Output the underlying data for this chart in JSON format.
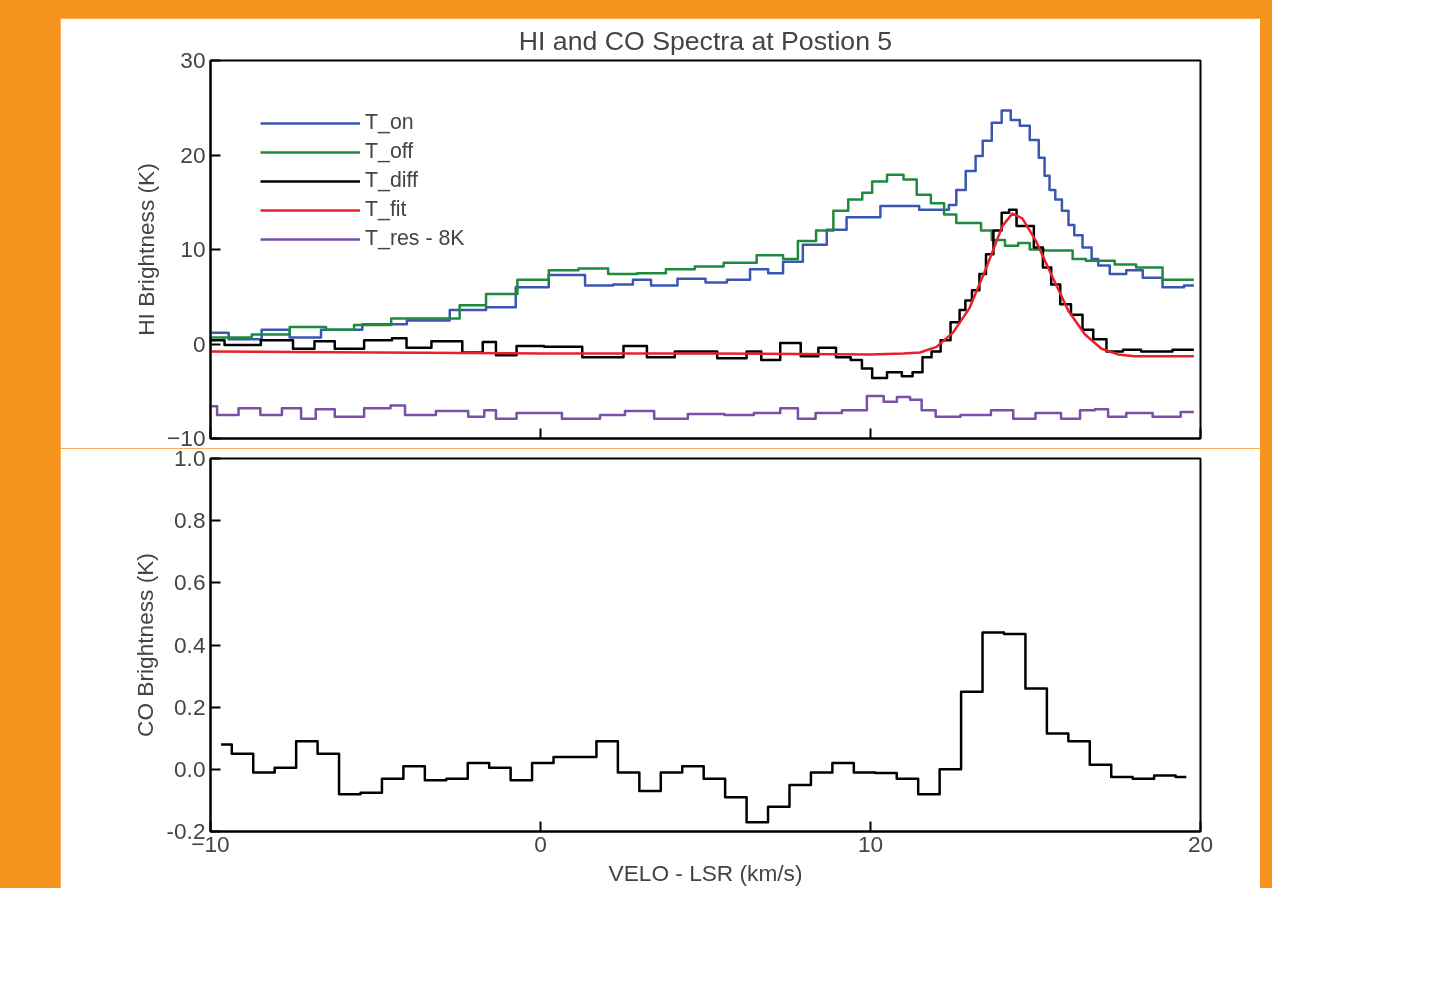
{
  "chart_data": [
    {
      "type": "step",
      "title": "HI and CO Spectra at Postion 5",
      "ylabel": "HI Brightness (K)",
      "xlim": [
        -10,
        20
      ],
      "ylim": [
        -10,
        30
      ],
      "yticks": [
        -10,
        0,
        10,
        20,
        30
      ],
      "tick_labels": "y",
      "legend": "top left",
      "series": [
        {
          "name": "T_on",
          "color": "#3a56b0",
          "x": [
            -10,
            -8.9,
            -8.0,
            -7.2,
            -6.1,
            -4.7,
            -3.4,
            -2.1,
            -1.2,
            -0.3,
            0.8,
            1.9,
            2.5,
            3.1,
            3.6,
            4.7,
            5.3,
            6.0,
            6.7,
            7.1,
            7.6,
            8.3,
            9.05,
            9.5,
            9.9,
            10.7,
            12.25,
            12.5,
            12.7,
            13.07,
            13.3,
            13.5,
            13.85,
            14.1,
            14.4,
            14.65,
            15.0,
            15.2,
            15.35,
            15.5,
            15.7,
            15.9,
            16.1,
            16.25,
            16.6,
            16.8,
            17.0,
            17.5,
            18.0,
            18.5,
            19.2,
            19.8
          ],
          "values": [
            1.2,
            0.5,
            1.5,
            0.7,
            1.5,
            2.1,
            2.5,
            3.6,
            3.9,
            6.0,
            7.3,
            6.2,
            6.3,
            6.8,
            6.2,
            6.9,
            6.5,
            6.8,
            7.9,
            7.5,
            8.7,
            10.5,
            12.1,
            13.4,
            13.4,
            14.6,
            14.2,
            14.7,
            16.3,
            18.3,
            19.9,
            21.5,
            23.4,
            24.7,
            23.7,
            23.1,
            21.6,
            19.7,
            17.8,
            16.3,
            15.3,
            14.1,
            12.6,
            11.5,
            10.2,
            9.0,
            8.3,
            7.4,
            7.8,
            7.0,
            6.0,
            6.2
          ]
        },
        {
          "name": "T_off",
          "color": "#1e8a3c",
          "x": [
            -10,
            -9.2,
            -8.3,
            -6.9,
            -6.1,
            -5.2,
            -3.85,
            -2.8,
            -2.1,
            -1.2,
            -0.2,
            0.7,
            1.6,
            2.5,
            3.35,
            4.25,
            5.1,
            6.0,
            7.1,
            7.6,
            8.0,
            8.7,
            9.05,
            9.6,
            9.9,
            10.2,
            10.8,
            11.2,
            11.6,
            12.06,
            12.4,
            12.8,
            13.2,
            13.5,
            13.85,
            14.3,
            14.65,
            15.0,
            15.5,
            16.0,
            16.25,
            16.8,
            17.1,
            17.7,
            18.4,
            19.3,
            19.8
          ],
          "values": [
            0.7,
            0.7,
            1.0,
            1.8,
            1.5,
            2.0,
            2.7,
            2.7,
            4.1,
            5.3,
            6.8,
            7.8,
            8.0,
            7.4,
            7.5,
            7.9,
            8.2,
            8.6,
            9.4,
            9.0,
            10.9,
            12.0,
            14.1,
            15.3,
            16.0,
            17.2,
            17.9,
            17.4,
            15.8,
            14.9,
            13.7,
            12.8,
            12.8,
            12.0,
            11.0,
            10.4,
            10.7,
            10.0,
            9.9,
            9.9,
            9.0,
            8.8,
            8.8,
            8.4,
            8.1,
            6.8,
            6.8
          ]
        },
        {
          "name": "T_diff",
          "color": "#000000",
          "x": [
            -10,
            -9.15,
            -7.8,
            -7.2,
            -6.5,
            -5.97,
            -4.72,
            -4.28,
            -3.84,
            -2.77,
            -1.97,
            -1.53,
            -1.17,
            -0.28,
            0.5,
            2.03,
            3.0,
            3.45,
            4.69,
            6.02,
            6.47,
            6.91,
            7.62,
            8.15,
            8.69,
            9.22,
            9.58,
            9.9,
            10.2,
            10.8,
            11.1,
            11.45,
            11.7,
            12.0,
            12.25,
            12.6,
            12.8,
            12.95,
            13.2,
            13.4,
            13.6,
            13.85,
            14.1,
            14.3,
            14.55,
            14.8,
            15.1,
            15.35,
            15.6,
            15.9,
            16.25,
            16.6,
            16.9,
            17.4,
            17.9,
            18.5,
            19.8
          ],
          "values": [
            0.4,
            -0.1,
            0.4,
            -0.5,
            0.3,
            -0.5,
            0.4,
            0.6,
            -0.4,
            0.3,
            -0.9,
            0.2,
            -1.2,
            -0.2,
            -0.3,
            -1.4,
            -0.2,
            -1.4,
            -0.8,
            -1.5,
            -0.8,
            -1.7,
            0.1,
            -1.3,
            -0.4,
            -1.4,
            -1.7,
            -2.6,
            -3.6,
            -3.0,
            -3.4,
            -3.0,
            -1.4,
            -0.8,
            0.4,
            2.3,
            3.6,
            4.6,
            5.7,
            7.4,
            9.5,
            12.0,
            13.9,
            14.2,
            12.5,
            12.5,
            10.2,
            8.1,
            6.3,
            4.2,
            3.1,
            1.5,
            0.5,
            -0.8,
            -0.6,
            -0.8,
            -0.6
          ]
        },
        {
          "name": "T_fit",
          "color": "#e8202a",
          "type": "line",
          "x": [
            -10,
            -5,
            0,
            5,
            10,
            11,
            11.5,
            12,
            12.5,
            13,
            13.5,
            14,
            14.3,
            14.6,
            15,
            15.5,
            16,
            16.5,
            17,
            17.5,
            18,
            19,
            19.8
          ],
          "values": [
            -0.8,
            -0.9,
            -1.0,
            -1.0,
            -1.1,
            -1.0,
            -0.9,
            -0.3,
            1.2,
            3.8,
            8.0,
            12.5,
            13.8,
            13.3,
            11.0,
            7.2,
            3.5,
            1.0,
            -0.5,
            -1.1,
            -1.3,
            -1.3,
            -1.3
          ]
        },
        {
          "name": "T_res - 8K",
          "color": "#7b4fa6",
          "x": [
            -10,
            -9.6,
            -8.7,
            -8.28,
            -7.39,
            -7.12,
            -6.5,
            -5.97,
            -4.72,
            -4.37,
            -3.84,
            -2.5,
            -1.88,
            -1.53,
            -1.17,
            -0.28,
            1.58,
            2.03,
            3.09,
            3.8,
            5.13,
            6.02,
            6.91,
            7.62,
            7.98,
            8.69,
            9.58,
            10.2,
            10.6,
            11.0,
            11.4,
            11.7,
            12.25,
            13.2,
            14.1,
            14.55,
            15.45,
            16.1,
            16.6,
            17.0,
            17.4,
            18.1,
            19.0,
            19.8
          ],
          "values": [
            -6.6,
            -7.5,
            -6.8,
            -7.5,
            -6.8,
            -7.9,
            -6.9,
            -7.7,
            -6.8,
            -6.5,
            -7.5,
            -7.1,
            -7.7,
            -7.0,
            -7.9,
            -7.3,
            -7.9,
            -7.5,
            -7.1,
            -7.9,
            -7.4,
            -7.5,
            -7.3,
            -6.8,
            -7.9,
            -7.3,
            -7.0,
            -5.5,
            -6.1,
            -5.6,
            -5.9,
            -7.0,
            -7.7,
            -7.5,
            -7.0,
            -7.9,
            -7.3,
            -7.9,
            -7.0,
            -6.9,
            -7.7,
            -7.3,
            -7.7,
            -7.2
          ]
        }
      ]
    },
    {
      "type": "step",
      "xlabel": "VELO - LSR (km/s)",
      "ylabel": "CO Brightness (K)",
      "xlim": [
        -10,
        20
      ],
      "xticks": [
        -10,
        0,
        10,
        20
      ],
      "ylim": [
        -0.2,
        1.0
      ],
      "yticks": [
        {
          "value": -0.2,
          "label": "-0.2"
        },
        {
          "value": 0,
          "label": "0.0"
        },
        0.2,
        0.4,
        0.6,
        0.8,
        {
          "value": 1,
          "label": "1.0"
        }
      ],
      "color": "#000000",
      "x": [
        -9.68,
        -9.03,
        -8.38,
        -7.73,
        -7.08,
        -6.43,
        -5.78,
        -5.13,
        -4.48,
        -3.83,
        -3.18,
        -2.53,
        -1.88,
        -1.23,
        -0.58,
        0.07,
        0.72,
        1.37,
        2.02,
        2.67,
        3.32,
        3.97,
        4.62,
        5.27,
        5.92,
        6.57,
        7.22,
        7.87,
        8.52,
        9.17,
        9.82,
        10.47,
        11.12,
        11.77,
        12.42,
        13.07,
        13.72,
        14.37,
        15.02,
        15.67,
        16.32,
        16.97,
        17.62,
        18.27,
        18.92,
        19.57
      ],
      "values": [
        0.08,
        0.05,
        -0.01,
        0.005,
        0.09,
        0.05,
        -0.08,
        -0.075,
        -0.03,
        0.01,
        -0.035,
        -0.03,
        0.02,
        0.005,
        -0.035,
        0.02,
        0.04,
        0.04,
        0.09,
        -0.01,
        -0.07,
        -0.01,
        0.01,
        -0.03,
        -0.09,
        -0.17,
        -0.12,
        -0.05,
        -0.01,
        0.02,
        -0.01,
        -0.012,
        -0.03,
        -0.08,
        0.0,
        0.25,
        0.44,
        0.435,
        0.26,
        0.115,
        0.09,
        0.015,
        -0.025,
        -0.03,
        -0.02,
        -0.025
      ]
    }
  ]
}
